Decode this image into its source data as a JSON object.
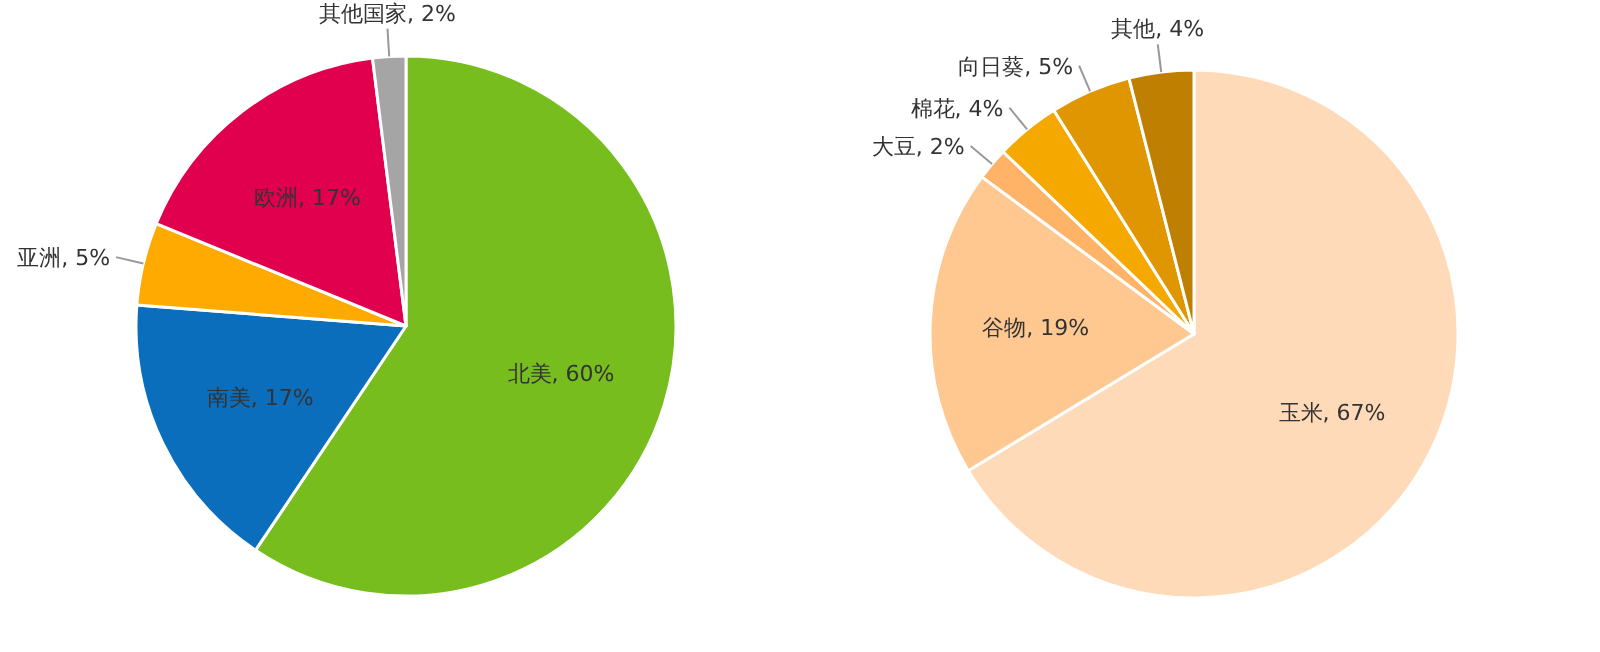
{
  "chart_data": [
    {
      "type": "pie",
      "categories": [
        "北美",
        "南美",
        "亚洲",
        "欧洲",
        "其他国家"
      ],
      "values": [
        60,
        17,
        5,
        17,
        2
      ],
      "value_labels": [
        "60%",
        "17%",
        "5%",
        "17%",
        "2%"
      ],
      "colors": [
        "#76bd1d",
        "#0a6ebd",
        "#ffaa00",
        "#e0004d",
        "#a5a5a5"
      ]
    },
    {
      "type": "pie",
      "categories": [
        "玉米",
        "谷物",
        "大豆",
        "棉花",
        "向日葵",
        "其他"
      ],
      "values": [
        67,
        19,
        2,
        4,
        5,
        4
      ],
      "value_labels": [
        "67%",
        "19%",
        "2%",
        "4%",
        "5%",
        "4%"
      ],
      "colors": [
        "#ffdab9",
        "#ffc891",
        "#ffb366",
        "#f5a800",
        "#e09600",
        "#bf7f00"
      ]
    }
  ]
}
